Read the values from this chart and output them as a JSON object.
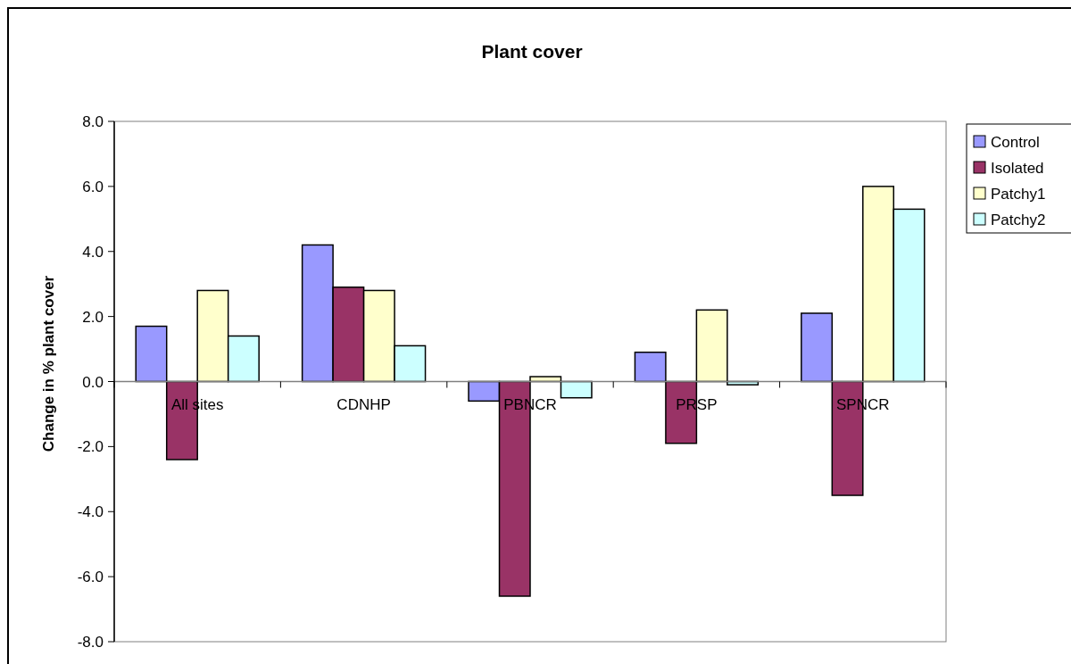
{
  "chart_data": {
    "type": "bar",
    "title": "Plant cover",
    "ylabel": "Change in % plant cover",
    "categories": [
      "All sites",
      "CDNHP",
      "PBNCR",
      "PRSP",
      "SPNCR"
    ],
    "series": [
      {
        "name": "Control",
        "color": "#9999ff",
        "values": [
          1.7,
          4.2,
          -0.6,
          0.9,
          2.1
        ]
      },
      {
        "name": "Isolated",
        "color": "#993366",
        "values": [
          -2.4,
          2.9,
          -6.6,
          -1.9,
          -3.5
        ]
      },
      {
        "name": "Patchy1",
        "color": "#ffffcc",
        "values": [
          2.8,
          2.8,
          0.15,
          2.2,
          6.0
        ]
      },
      {
        "name": "Patchy2",
        "color": "#ccffff",
        "values": [
          1.4,
          1.1,
          -0.5,
          -0.1,
          5.3
        ]
      }
    ],
    "ylim": [
      -8,
      8
    ],
    "yticks": [
      {
        "value": -8,
        "label": "-8.0"
      },
      {
        "value": -6,
        "label": "-6.0"
      },
      {
        "value": -4,
        "label": "-4.0"
      },
      {
        "value": -2,
        "label": "-2.0"
      },
      {
        "value": 0,
        "label": "0.0"
      },
      {
        "value": 2,
        "label": "2.0"
      },
      {
        "value": 4,
        "label": "4.0"
      },
      {
        "value": 6,
        "label": "6.0"
      },
      {
        "value": 8,
        "label": "8.0"
      }
    ],
    "grid": false,
    "legend": "right"
  }
}
